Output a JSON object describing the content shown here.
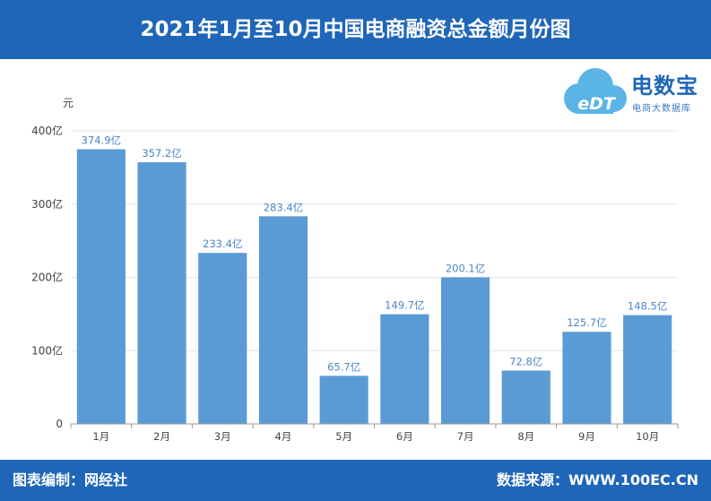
{
  "header": {
    "title": "2021年1月至10月中国电商融资总金额月份图"
  },
  "footer": {
    "left": "图表编制：网经社",
    "right": "数据来源：WWW.100EC.CN"
  },
  "logo": {
    "mark_text": "eDT",
    "name": "电数宝",
    "subtitle": "电商大数据库",
    "icon": "cloud-logo-icon"
  },
  "colors": {
    "brand": "#1f66b8",
    "bar": "#5b9bd5",
    "value_label": "#4a86c5"
  },
  "chart_data": {
    "type": "bar",
    "title": "2021年1月至10月中国电商融资总金额月份图",
    "ylabel": "元",
    "xlabel": "",
    "ylim": [
      0,
      400
    ],
    "grid": true,
    "yticks": [
      {
        "value": 0,
        "label": "0"
      },
      {
        "value": 100,
        "label": "100亿"
      },
      {
        "value": 200,
        "label": "200亿"
      },
      {
        "value": 300,
        "label": "300亿"
      },
      {
        "value": 400,
        "label": "400亿"
      }
    ],
    "categories": [
      "1月",
      "2月",
      "3月",
      "4月",
      "5月",
      "6月",
      "7月",
      "8月",
      "9月",
      "10月"
    ],
    "values": [
      374.9,
      357.2,
      233.4,
      283.4,
      65.7,
      149.7,
      200.1,
      72.8,
      125.7,
      148.5
    ],
    "data_labels": [
      "374.9亿",
      "357.2亿",
      "233.4亿",
      "283.4亿",
      "65.7亿",
      "149.7亿",
      "200.1亿",
      "72.8亿",
      "125.7亿",
      "148.5亿"
    ]
  }
}
